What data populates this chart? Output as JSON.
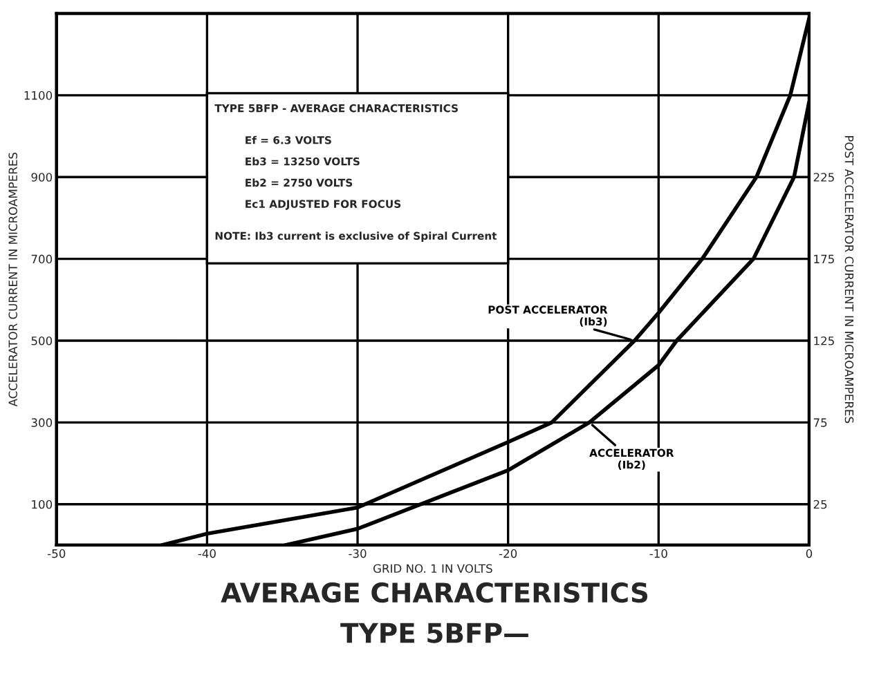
{
  "chart_data": {
    "type": "line",
    "title": "AVERAGE CHARACTERISTICS",
    "subtitle": "TYPE 5BFP—",
    "xlabel": "GRID NO. 1 IN VOLTS",
    "ylabel": "ACCELERATOR CURRENT IN MICROAMPERES",
    "y2label": "POST ACCELERATOR CURRENT IN MICROAMPERES",
    "series": [
      {
        "name": "POST ACCELERATOR\n(Ib3)",
        "color": "#000000",
        "axis": "y2",
        "x": [
          -43,
          -40,
          -30,
          -20,
          -17.1,
          -11.6,
          -10,
          -7.1,
          -3.5,
          -1.25,
          0
        ],
        "values": [
          0,
          7,
          23,
          63,
          75,
          125,
          142,
          175,
          225,
          275,
          322
        ]
      },
      {
        "name": "ACCELERATOR\n(Ib2)",
        "color": "#000000",
        "x": [
          -34.8,
          -30,
          -20,
          -14.6,
          -10,
          -8.8,
          -3.7,
          -1,
          0
        ],
        "values": [
          0,
          40,
          183,
          300,
          440,
          500,
          700,
          900,
          1083
        ]
      }
    ],
    "xlim": [
      -50,
      0
    ],
    "xticks": [
      -50,
      -40,
      -30,
      -20,
      -10,
      0
    ],
    "ylim": [
      0,
      1300
    ],
    "yticks": [
      100,
      300,
      500,
      700,
      900,
      1100
    ],
    "y2lim": [
      0,
      325
    ],
    "y2ticks": [
      25,
      75,
      125,
      175,
      225
    ],
    "grid": true,
    "marker": "none",
    "line_style": "solid",
    "annotations": [
      "TYPE 5BFP - AVERAGE CHARACTERISTICS",
      "Ef = 6.3 VOLTS",
      "Eb3 = 13250 VOLTS",
      "Eb2 = 2750 VOLTS",
      "Ec1 ADJUSTED FOR FOCUS",
      "NOTE: Ib3 current is exclusive of Spiral Current"
    ]
  }
}
